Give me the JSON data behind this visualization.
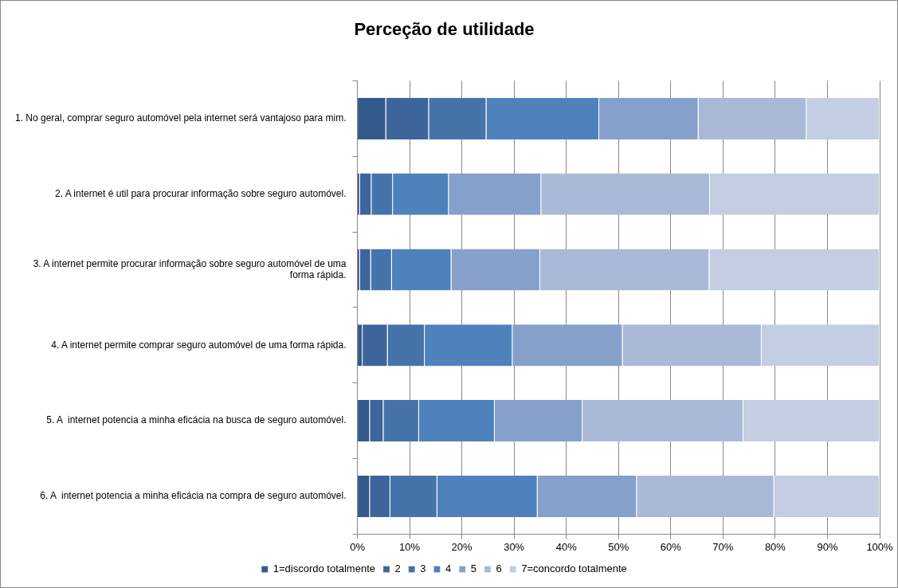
{
  "chart_data": {
    "type": "bar",
    "orientation": "horizontal",
    "stacked": true,
    "title": "Perceção de utilidade",
    "categories": [
      "1. No geral, comprar seguro automóvel pela internet será vantajoso para mim.",
      "2. A internet é util para procurar informação sobre seguro automóvel.",
      "3. A internet permite procurar informação sobre seguro automóvel de uma forma rápida.",
      "4. A internet permite comprar seguro automóvel de uma forma rápida.",
      "5. A  internet potencia a minha eficácia na busca de seguro automóvel.",
      "6. A  internet potencia a minha eficácia na compra de seguro automóvel."
    ],
    "series": [
      {
        "name": "1=discordo totalmente",
        "color": "#335a8a",
        "values": [
          5.5,
          0.5,
          0.5,
          1.0,
          2.4,
          2.4
        ]
      },
      {
        "name": "2",
        "color": "#3d659c",
        "values": [
          8.2,
          2.2,
          2.1,
          4.8,
          2.6,
          3.9
        ]
      },
      {
        "name": "3",
        "color": "#4573aa",
        "values": [
          11.0,
          4.1,
          4.0,
          7.1,
          6.8,
          9.0
        ]
      },
      {
        "name": "4",
        "color": "#4f81bd",
        "values": [
          21.6,
          10.7,
          11.4,
          16.8,
          14.5,
          19.2
        ]
      },
      {
        "name": "5",
        "color": "#85a0cb",
        "values": [
          19.0,
          17.7,
          17.0,
          21.1,
          16.8,
          19.0
        ]
      },
      {
        "name": "6",
        "color": "#aab9d7",
        "values": [
          20.7,
          32.3,
          32.4,
          26.6,
          30.8,
          26.3
        ]
      },
      {
        "name": "7=concordo totalmente",
        "color": "#c3cee2",
        "values": [
          14.0,
          32.5,
          32.6,
          22.6,
          26.1,
          20.2
        ]
      }
    ],
    "xlim": [
      0,
      100
    ],
    "xticks": [
      {
        "value": 0,
        "label": "0%"
      },
      {
        "value": 10,
        "label": "10%"
      },
      {
        "value": 20,
        "label": "20%"
      },
      {
        "value": 30,
        "label": "30%"
      },
      {
        "value": 40,
        "label": "40%"
      },
      {
        "value": 50,
        "label": "50%"
      },
      {
        "value": 60,
        "label": "60%"
      },
      {
        "value": 70,
        "label": "70%"
      },
      {
        "value": 80,
        "label": "80%"
      },
      {
        "value": 90,
        "label": "90%"
      },
      {
        "value": 100,
        "label": "100%"
      }
    ],
    "grid": "x",
    "legend": "bottom"
  }
}
